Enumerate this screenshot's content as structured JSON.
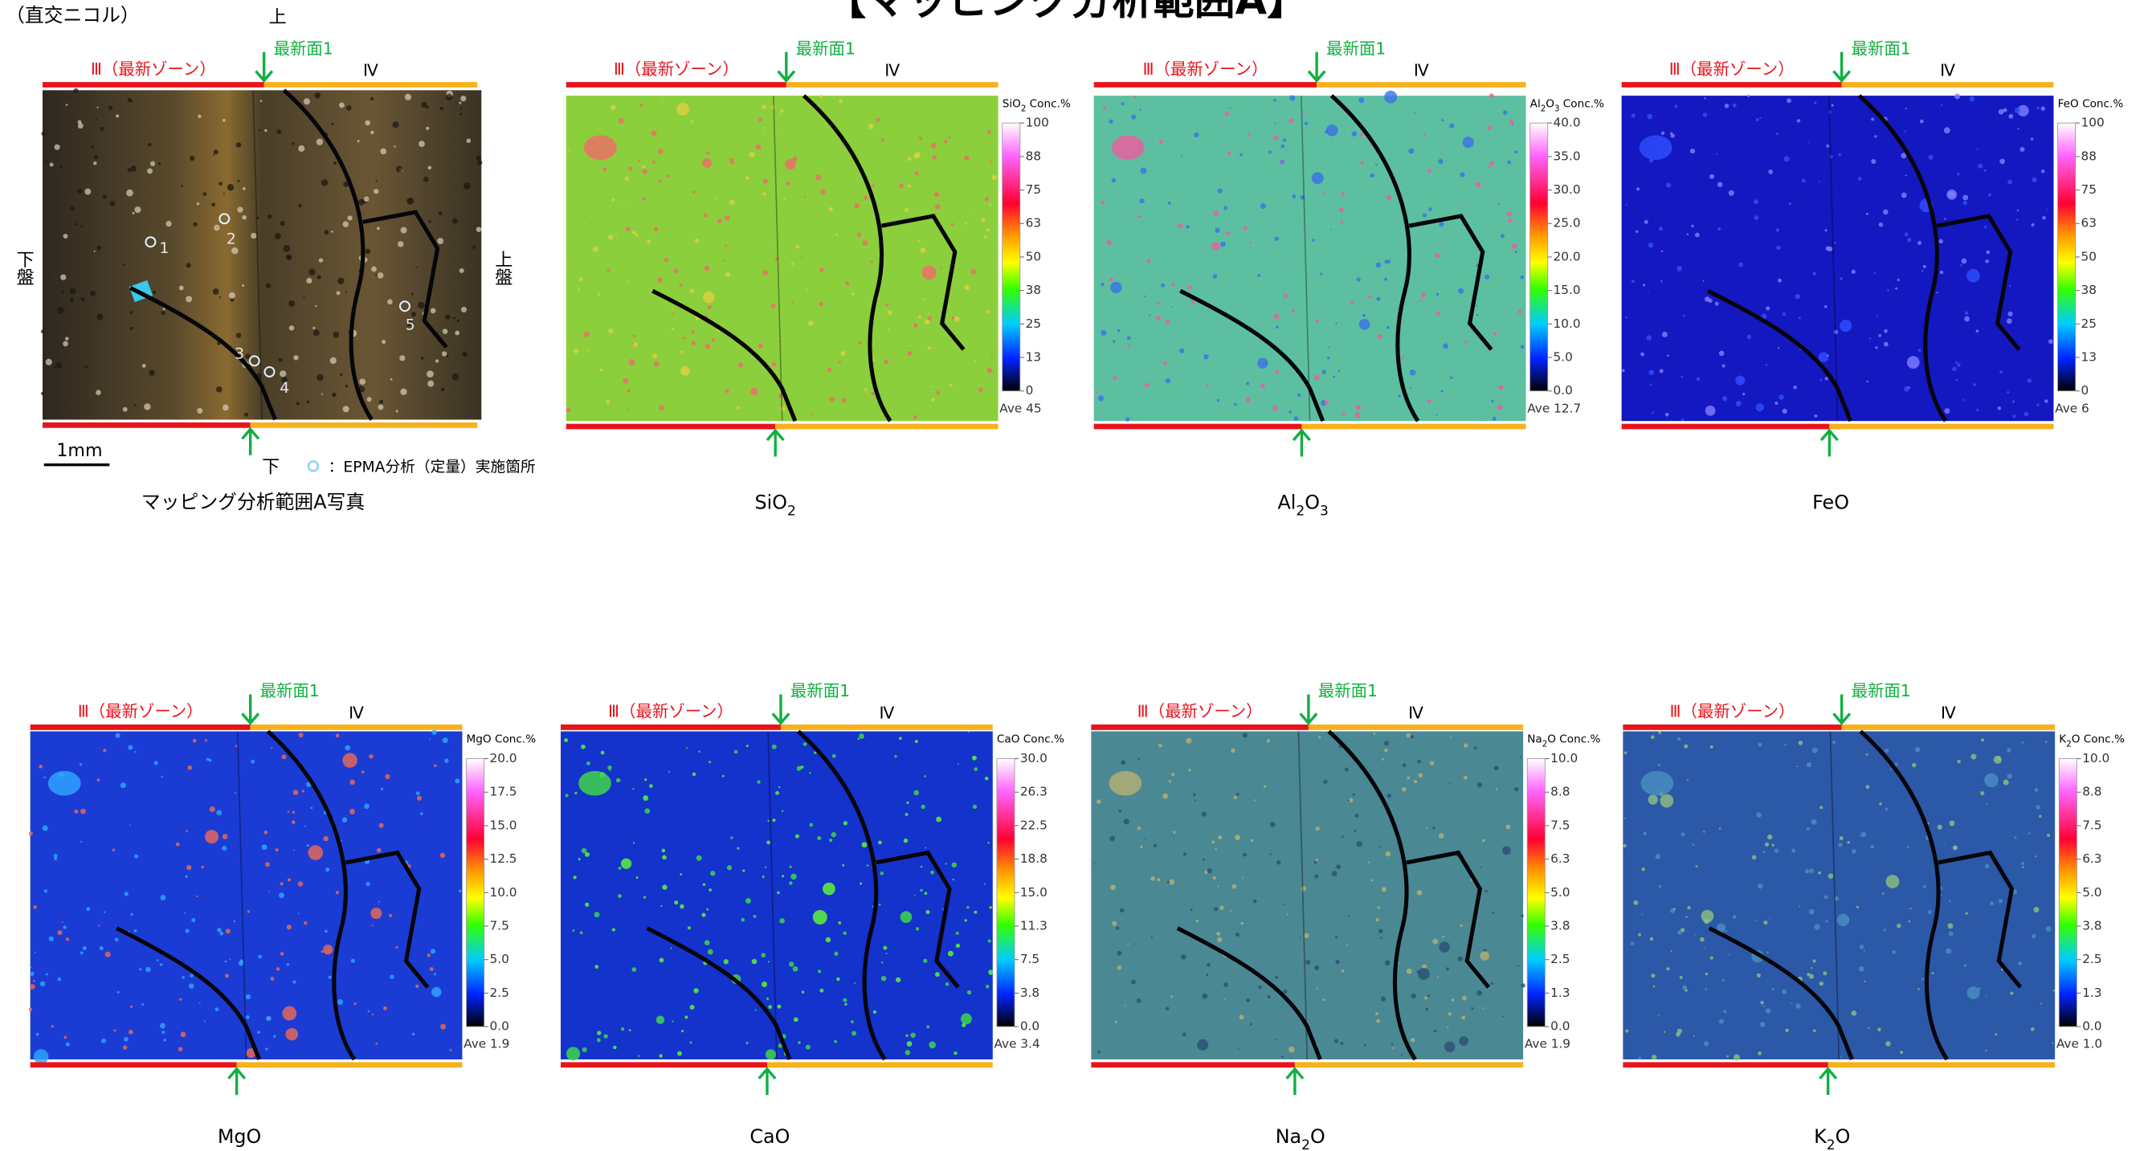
{
  "header": {
    "title": "【マッピング分析範囲A】",
    "note": "（直交ニコル）"
  },
  "photo_panel": {
    "zone_left": "Ⅲ（最新ゾーン）",
    "zone_right": "Ⅳ",
    "plane": "最新面1",
    "top": "上",
    "bottom": "下",
    "left_side": "下盤",
    "right_side": "上盤",
    "scale_bar": "1mm",
    "legend": "：EPMA分析（定量）実施箇所",
    "points": [
      "1",
      "2",
      "3",
      "4",
      "5"
    ],
    "caption": "マッピング分析範囲A写真"
  },
  "maps": [
    {
      "zone_left": "Ⅲ（最新ゾーン）",
      "zone_right": "Ⅳ",
      "plane": "最新面1",
      "caption": [
        {
          "text": "SiO"
        },
        {
          "text": "2",
          "sub": true
        }
      ],
      "scale_title": [
        {
          "text": "SiO"
        },
        {
          "text": "2",
          "sub": true
        },
        {
          "text": " Conc.%"
        }
      ],
      "ticks": [
        "100",
        "88",
        "75",
        "63",
        "50",
        "38",
        "25",
        "13",
        "0"
      ],
      "average": "Ave 45"
    },
    {
      "zone_left": "Ⅲ（最新ゾーン）",
      "zone_right": "Ⅳ",
      "plane": "最新面1",
      "caption": [
        {
          "text": "Al"
        },
        {
          "text": "2",
          "sub": true
        },
        {
          "text": "O"
        },
        {
          "text": "3",
          "sub": true
        }
      ],
      "scale_title": [
        {
          "text": "Al"
        },
        {
          "text": "2",
          "sub": true
        },
        {
          "text": "O"
        },
        {
          "text": "3",
          "sub": true
        },
        {
          "text": " Conc.%"
        }
      ],
      "ticks": [
        "40.0",
        "35.0",
        "30.0",
        "25.0",
        "20.0",
        "15.0",
        "10.0",
        "5.0",
        "0.0"
      ],
      "average": "Ave 12.7"
    },
    {
      "zone_left": "Ⅲ（最新ゾーン）",
      "zone_right": "Ⅳ",
      "plane": "最新面1",
      "caption": [
        {
          "text": "FeO"
        }
      ],
      "scale_title": [
        {
          "text": "FeO Conc.%"
        }
      ],
      "ticks": [
        "100",
        "88",
        "75",
        "63",
        "50",
        "38",
        "25",
        "13",
        "0"
      ],
      "average": "Ave 6"
    },
    {
      "zone_left": "Ⅲ（最新ゾーン）",
      "zone_right": "Ⅳ",
      "plane": "最新面1",
      "caption": [
        {
          "text": "MgO"
        }
      ],
      "scale_title": [
        {
          "text": "MgO Conc.%"
        }
      ],
      "ticks": [
        "20.0",
        "17.5",
        "15.0",
        "12.5",
        "10.0",
        "7.5",
        "5.0",
        "2.5",
        "0.0"
      ],
      "average": "Ave 1.9"
    },
    {
      "zone_left": "Ⅲ（最新ゾーン）",
      "zone_right": "Ⅳ",
      "plane": "最新面1",
      "caption": [
        {
          "text": "CaO"
        }
      ],
      "scale_title": [
        {
          "text": "CaO Conc.%"
        }
      ],
      "ticks": [
        "30.0",
        "26.3",
        "22.5",
        "18.8",
        "15.0",
        "11.3",
        "7.5",
        "3.8",
        "0.0"
      ],
      "average": "Ave 3.4"
    },
    {
      "zone_left": "Ⅲ（最新ゾーン）",
      "zone_right": "Ⅳ",
      "plane": "最新面1",
      "caption": [
        {
          "text": "Na"
        },
        {
          "text": "2",
          "sub": true
        },
        {
          "text": "O"
        }
      ],
      "scale_title": [
        {
          "text": "Na"
        },
        {
          "text": "2",
          "sub": true
        },
        {
          "text": "O  Conc.%"
        }
      ],
      "ticks": [
        "10.0",
        "8.8",
        "7.5",
        "6.3",
        "5.0",
        "3.8",
        "2.5",
        "1.3",
        "0.0"
      ],
      "average": "Ave 1.9"
    },
    {
      "zone_left": "Ⅲ（最新ゾーン）",
      "zone_right": "Ⅳ",
      "plane": "最新面1",
      "caption": [
        {
          "text": "K"
        },
        {
          "text": "2",
          "sub": true
        },
        {
          "text": "O"
        }
      ],
      "scale_title": [
        {
          "text": "K"
        },
        {
          "text": "2",
          "sub": true
        },
        {
          "text": "O Conc.%"
        }
      ],
      "ticks": [
        "10.0",
        "8.8",
        "7.5",
        "6.3",
        "5.0",
        "3.8",
        "2.5",
        "1.3",
        "0.0"
      ],
      "average": "Ave 1.0"
    }
  ]
}
